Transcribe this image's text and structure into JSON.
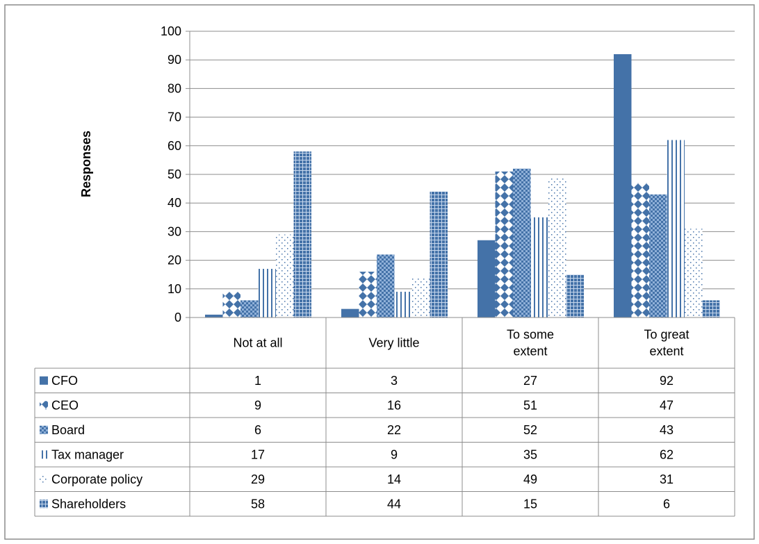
{
  "chart_data": {
    "type": "bar",
    "title": "",
    "xlabel": "",
    "ylabel": "Responses",
    "ylim": [
      0,
      100
    ],
    "yticks": [
      0,
      10,
      20,
      30,
      40,
      50,
      60,
      70,
      80,
      90,
      100
    ],
    "grid": true,
    "legend": "data-table",
    "categories": [
      "Not at all",
      "Very little",
      "To some extent",
      "To great extent"
    ],
    "category_label_lines": [
      [
        "Not at all"
      ],
      [
        "Very little"
      ],
      [
        "To some",
        "extent"
      ],
      [
        "To great",
        "extent"
      ]
    ],
    "series": [
      {
        "name": "CFO",
        "values": [
          1,
          3,
          27,
          92
        ],
        "pattern": "solid",
        "color": "#4472a8"
      },
      {
        "name": "CEO",
        "values": [
          9,
          16,
          51,
          47
        ],
        "pattern": "diamond",
        "color": "#4472a8"
      },
      {
        "name": "Board",
        "values": [
          6,
          22,
          52,
          43
        ],
        "pattern": "checker",
        "color": "#4472a8"
      },
      {
        "name": "Tax manager",
        "values": [
          17,
          9,
          35,
          62
        ],
        "pattern": "vertical-lines",
        "color": "#4472a8"
      },
      {
        "name": "Corporate policy",
        "values": [
          29,
          14,
          49,
          31
        ],
        "pattern": "dots",
        "color": "#4472a8"
      },
      {
        "name": "Shareholders",
        "values": [
          58,
          44,
          15,
          6
        ],
        "pattern": "grid",
        "color": "#4472a8"
      }
    ]
  }
}
